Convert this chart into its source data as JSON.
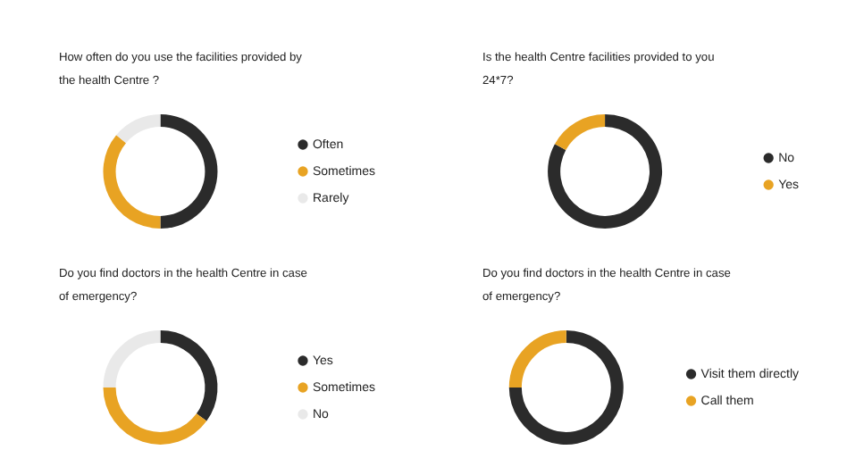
{
  "chart_data": [
    {
      "type": "donut",
      "title": "How often do you use the facilities provided by the health Centre ?",
      "categories": [
        "Often",
        "Sometimes",
        "Rarely"
      ],
      "values": [
        50,
        36,
        14
      ],
      "colors": [
        "#2b2b2b",
        "#e8a323",
        "#e9e9e9"
      ],
      "legend": "right"
    },
    {
      "type": "donut",
      "title": "Is the health Centre facilities provided to you 24*7?",
      "categories": [
        "No",
        "Yes"
      ],
      "values": [
        83,
        17
      ],
      "colors": [
        "#2b2b2b",
        "#e8a323"
      ],
      "legend": "right"
    },
    {
      "type": "donut",
      "title": "Do you find doctors in the health Centre in case of emergency?",
      "categories": [
        "Yes",
        "Sometimes",
        "No"
      ],
      "values": [
        35,
        40,
        25
      ],
      "colors": [
        "#2b2b2b",
        "#e8a323",
        "#e9e9e9"
      ],
      "legend": "right"
    },
    {
      "type": "donut",
      "title": "Do you find doctors in the health Centre in case of emergency?",
      "categories": [
        "Visit them directly",
        "Call them"
      ],
      "values": [
        75,
        25
      ],
      "colors": [
        "#2b2b2b",
        "#e8a323"
      ],
      "legend": "right"
    }
  ]
}
